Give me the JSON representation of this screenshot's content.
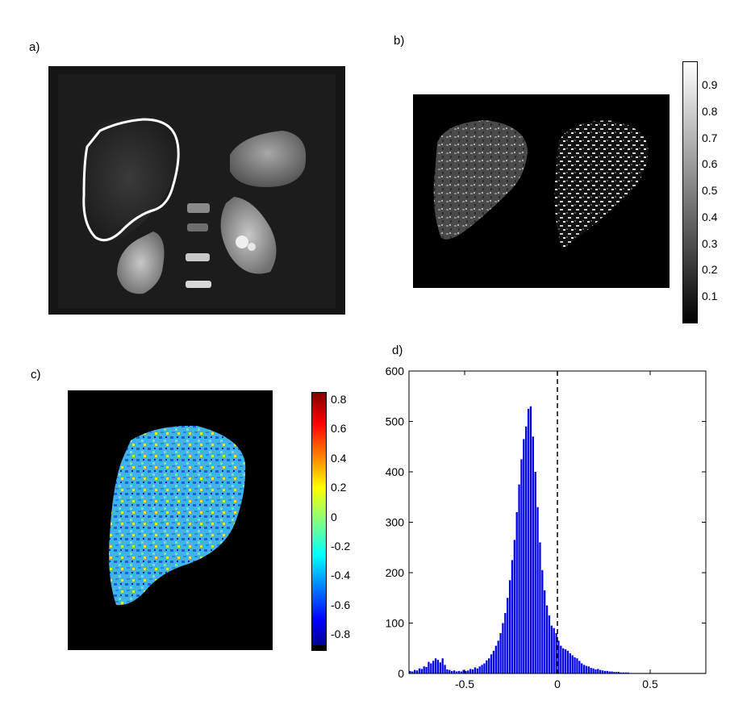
{
  "panels": {
    "a": "a)",
    "b": "b)",
    "c": "c)",
    "d": "d)"
  },
  "colorbar_b": {
    "ticks": [
      "0.9",
      "0.8",
      "0.7",
      "0.6",
      "0.5",
      "0.4",
      "0.3",
      "0.2",
      "0.1"
    ],
    "colormap": "gray"
  },
  "colorbar_c": {
    "ticks": [
      "0.8",
      "0.6",
      "0.4",
      "0.2",
      "0",
      "-0.2",
      "-0.4",
      "-0.6",
      "-0.8"
    ],
    "colormap": "jet"
  },
  "chart_data": {
    "type": "bar",
    "xlim": [
      -0.8,
      0.8
    ],
    "ylim": [
      0,
      600
    ],
    "xticks": [
      -0.5,
      0,
      0.5
    ],
    "yticks": [
      0,
      100,
      200,
      300,
      400,
      500,
      600
    ],
    "bar_color": "#0000ee",
    "reference_line": {
      "x": 0,
      "style": "dashed"
    },
    "bin_width": 0.0125,
    "bins": [
      -0.79375,
      -0.78125,
      -0.76875,
      -0.75625,
      -0.74375,
      -0.73125,
      -0.71875,
      -0.70625,
      -0.69375,
      -0.68125,
      -0.66875,
      -0.65625,
      -0.64375,
      -0.63125,
      -0.61875,
      -0.60625,
      -0.59375,
      -0.58125,
      -0.56875,
      -0.55625,
      -0.54375,
      -0.53125,
      -0.51875,
      -0.50625,
      -0.49375,
      -0.48125,
      -0.46875,
      -0.45625,
      -0.44375,
      -0.43125,
      -0.41875,
      -0.40625,
      -0.39375,
      -0.38125,
      -0.36875,
      -0.35625,
      -0.34375,
      -0.33125,
      -0.31875,
      -0.30625,
      -0.29375,
      -0.28125,
      -0.26875,
      -0.25625,
      -0.24375,
      -0.23125,
      -0.21875,
      -0.20625,
      -0.19375,
      -0.18125,
      -0.16875,
      -0.15625,
      -0.14375,
      -0.13125,
      -0.11875,
      -0.10625,
      -0.09375,
      -0.08125,
      -0.06875,
      -0.05625,
      -0.04375,
      -0.03125,
      -0.01875,
      -0.00625,
      0.00625,
      0.01875,
      0.03125,
      0.04375,
      0.05625,
      0.06875,
      0.08125,
      0.09375,
      0.10625,
      0.11875,
      0.13125,
      0.14375,
      0.15625,
      0.16875,
      0.18125,
      0.19375,
      0.20625,
      0.21875,
      0.23125,
      0.24375,
      0.25625,
      0.26875,
      0.28125,
      0.29375,
      0.30625,
      0.31875,
      0.33125,
      0.34375,
      0.35625,
      0.36875,
      0.38125,
      0.39375,
      0.40625,
      0.41875,
      0.43125,
      0.44375,
      0.45625,
      0.46875,
      0.48125,
      0.49375,
      0.50625,
      0.51875,
      0.53125,
      0.54375,
      0.55625,
      0.56875,
      0.58125,
      0.59375,
      0.60625,
      0.61875,
      0.63125,
      0.64375,
      0.65625,
      0.66875,
      0.68125,
      0.69375,
      0.70625,
      0.71875,
      0.73125,
      0.74375,
      0.75625,
      0.76875,
      0.78125,
      0.79375
    ],
    "values": [
      5,
      4,
      7,
      6,
      10,
      9,
      14,
      13,
      23,
      20,
      25,
      30,
      27,
      22,
      30,
      17,
      8,
      7,
      5,
      6,
      4,
      5,
      4,
      7,
      5,
      6,
      9,
      8,
      12,
      10,
      14,
      17,
      20,
      26,
      30,
      38,
      45,
      55,
      65,
      80,
      100,
      120,
      150,
      185,
      225,
      265,
      320,
      375,
      425,
      465,
      490,
      525,
      530,
      470,
      400,
      330,
      260,
      205,
      165,
      135,
      115,
      95,
      90,
      80,
      65,
      55,
      50,
      48,
      45,
      40,
      36,
      32,
      30,
      25,
      20,
      17,
      15,
      14,
      11,
      10,
      8,
      9,
      7,
      6,
      5,
      5,
      4,
      4,
      3,
      3,
      3,
      2,
      2,
      2,
      2,
      1,
      1,
      1,
      1,
      1,
      1,
      1,
      1,
      1,
      1,
      1,
      1,
      1,
      1,
      1,
      1,
      1,
      1,
      1,
      1,
      1,
      1,
      1,
      1,
      1,
      1,
      1,
      1,
      1,
      1,
      1,
      1,
      1
    ]
  }
}
